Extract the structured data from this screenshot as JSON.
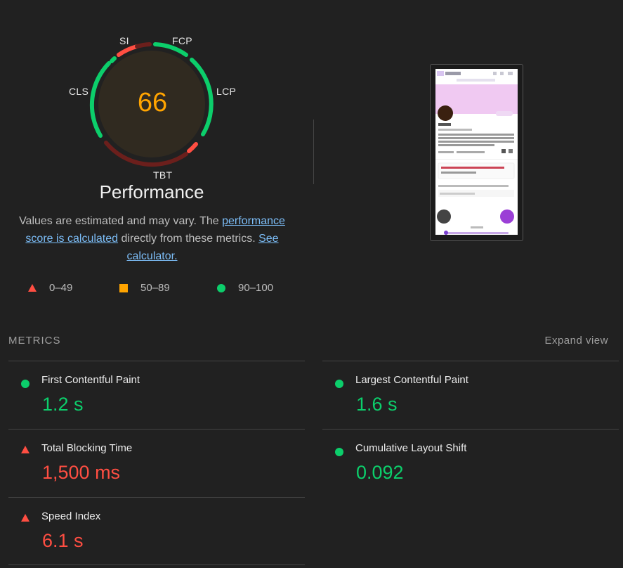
{
  "gauge": {
    "score": "66",
    "title": "Performance",
    "labels": {
      "si": "SI",
      "fcp": "FCP",
      "lcp": "LCP",
      "tbt": "TBT",
      "cls": "CLS"
    }
  },
  "description": {
    "text1": "Values are estimated and may vary. The ",
    "link1": "performance score is calculated",
    "text2": " directly from these metrics. ",
    "link2": "See calculator."
  },
  "legend": {
    "fail": "0–49",
    "average": "50–89",
    "pass": "90–100"
  },
  "metrics_section": {
    "title": "METRICS",
    "expand": "Expand view"
  },
  "metrics": [
    {
      "name": "First Contentful Paint",
      "value": "1.2 s",
      "status": "pass"
    },
    {
      "name": "Largest Contentful Paint",
      "value": "1.6 s",
      "status": "pass"
    },
    {
      "name": "Total Blocking Time",
      "value": "1,500 ms",
      "status": "fail"
    },
    {
      "name": "Cumulative Layout Shift",
      "value": "0.092",
      "status": "pass"
    },
    {
      "name": "Speed Index",
      "value": "6.1 s",
      "status": "fail"
    }
  ],
  "colors": {
    "pass": "#0cce6b",
    "average": "#ffa400",
    "fail": "#ff4e42",
    "accent_link": "#7cbdf7"
  }
}
